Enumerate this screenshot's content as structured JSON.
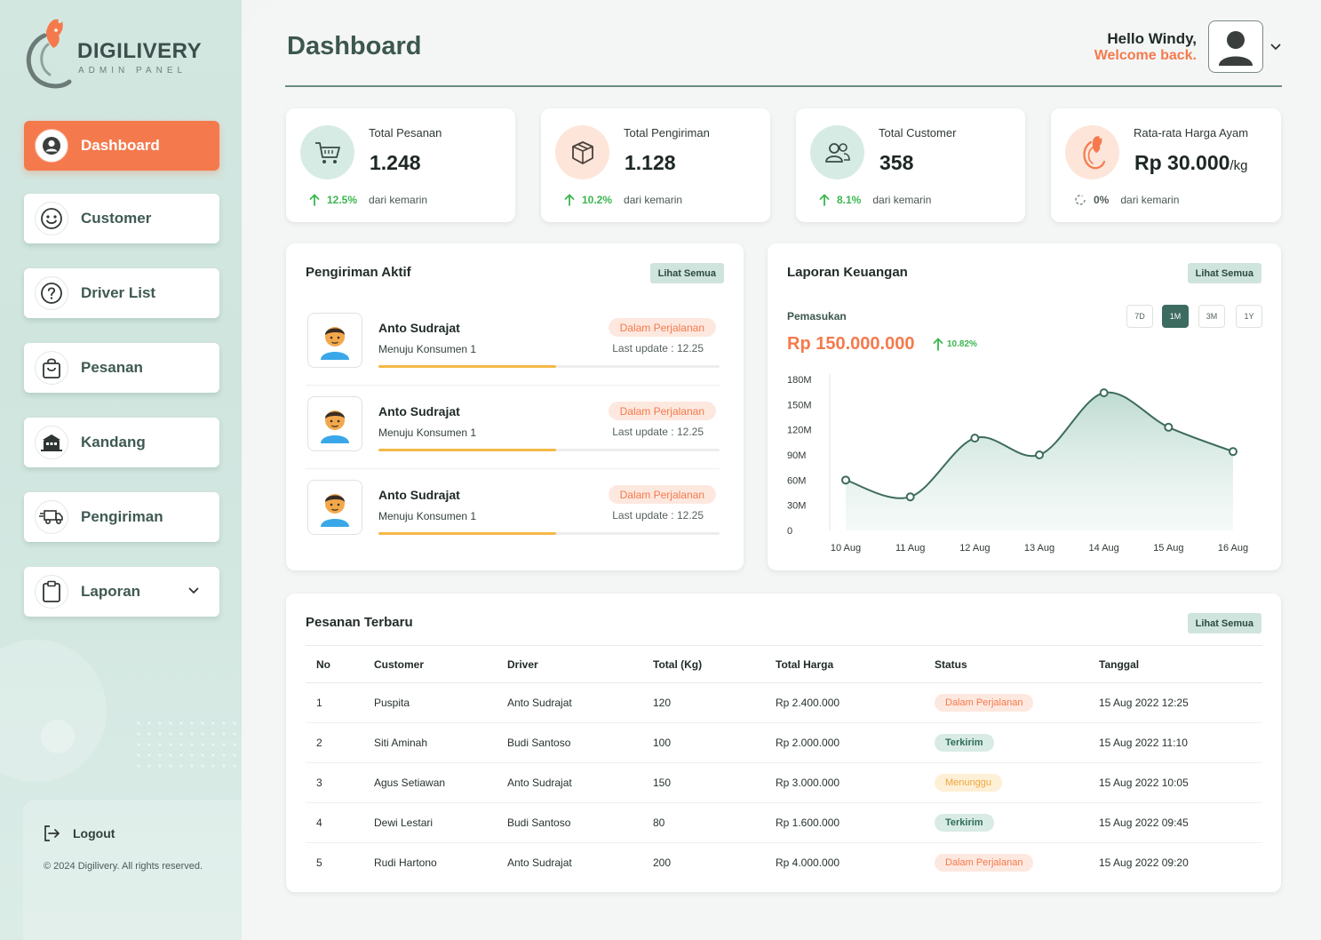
{
  "brand": {
    "name": "DIGILIVERY",
    "tagline": "ADMIN PANEL"
  },
  "sidebar": {
    "items": [
      {
        "label": "Dashboard",
        "icon": "user-circle-icon",
        "active": true
      },
      {
        "label": "Customer",
        "icon": "smiley-icon"
      },
      {
        "label": "Driver List",
        "icon": "question-circle-icon"
      },
      {
        "label": "Pesanan",
        "icon": "shopping-bag-icon"
      },
      {
        "label": "Kandang",
        "icon": "coop-icon"
      },
      {
        "label": "Pengiriman",
        "icon": "delivery-truck-icon"
      },
      {
        "label": "Laporan",
        "icon": "clipboard-icon"
      }
    ],
    "logout": "Logout",
    "copyright": "© 2024 Digilivery. All rights reserved."
  },
  "header": {
    "title": "Dashboard",
    "hello": "Hello Windy,",
    "welcome": "Welcome back."
  },
  "stats": [
    {
      "title": "Total Pesanan",
      "value": "1.248",
      "unit": "",
      "pct": "12.5%",
      "suffix": "dari kemarin",
      "icon": "cart-icon",
      "trend": "up"
    },
    {
      "title": "Total Pengiriman",
      "value": "1.128",
      "unit": "",
      "pct": "10.2%",
      "suffix": "dari kemarin",
      "icon": "box-icon",
      "trend": "up"
    },
    {
      "title": "Total Customer",
      "value": "358",
      "unit": "",
      "pct": "8.1%",
      "suffix": "dari kemarin",
      "icon": "users-icon",
      "trend": "up"
    },
    {
      "title": "Rata-rata Harga Ayam",
      "value": "Rp 30.000",
      "unit": "/kg",
      "pct": "0%",
      "suffix": "dari kemarin",
      "icon": "chicken-icon",
      "trend": "neutral"
    }
  ],
  "shipments": {
    "title": "Pengiriman Aktif",
    "view_all": "Lihat Semua",
    "rows": [
      {
        "name": "Anto Sudrajat",
        "dest": "Menuju Konsumen 1",
        "status": "Dalam Perjalanan",
        "update": "Last update : 12.25",
        "progress": 0.52
      },
      {
        "name": "Anto Sudrajat",
        "dest": "Menuju Konsumen 1",
        "status": "Dalam Perjalanan",
        "update": "Last update : 12.25",
        "progress": 0.52
      },
      {
        "name": "Anto Sudrajat",
        "dest": "Menuju Konsumen 1",
        "status": "Dalam Perjalanan",
        "update": "Last update : 12.25",
        "progress": 0.52
      }
    ]
  },
  "finance": {
    "title": "Laporan Keuangan",
    "view_all": "Lihat Semua",
    "label": "Pemasukan",
    "value": "Rp 150.000.000",
    "pct": "10.82%",
    "ranges": [
      "7D",
      "1M",
      "3M",
      "1Y"
    ],
    "active_range": "1M"
  },
  "chart_data": {
    "type": "area",
    "categories": [
      "10 Aug",
      "11 Aug",
      "12 Aug",
      "13 Aug",
      "14 Aug",
      "15 Aug",
      "16 Aug"
    ],
    "values": [
      60,
      40,
      110,
      90,
      164,
      123,
      94
    ],
    "yticks": [
      "0",
      "30M",
      "60M",
      "90M",
      "120M",
      "150M",
      "180M"
    ],
    "ylim": [
      0,
      180
    ],
    "line_color": "#3d6b5f",
    "grid": false
  },
  "orders": {
    "title": "Pesanan Terbaru",
    "view_all": "Lihat Semua",
    "columns": [
      "No",
      "Customer",
      "Driver",
      "Total (Kg)",
      "Total Harga",
      "Status",
      "Tanggal"
    ],
    "rows": [
      {
        "no": "1",
        "customer": "Puspita",
        "driver": "Anto Sudrajat",
        "kg": "120",
        "harga": "Rp 2.400.000",
        "status": "Dalam Perjalanan",
        "kind": "jalan",
        "date": "15 Aug 2022 12:25"
      },
      {
        "no": "2",
        "customer": "Siti Aminah",
        "driver": "Budi Santoso",
        "kg": "100",
        "harga": "Rp 2.000.000",
        "status": "Terkirim",
        "kind": "kirim",
        "date": "15 Aug 2022 11:10"
      },
      {
        "no": "3",
        "customer": "Agus Setiawan",
        "driver": "Anto Sudrajat",
        "kg": "150",
        "harga": "Rp 3.000.000",
        "status": "Menunggu",
        "kind": "tunggu",
        "date": "15 Aug 2022 10:05"
      },
      {
        "no": "4",
        "customer": "Dewi Lestari",
        "driver": "Budi Santoso",
        "kg": "80",
        "harga": "Rp 1.600.000",
        "status": "Terkirim",
        "kind": "kirim",
        "date": "15 Aug 2022 09:45"
      },
      {
        "no": "5",
        "customer": "Rudi Hartono",
        "driver": "Anto Sudrajat",
        "kg": "200",
        "harga": "Rp 4.000.000",
        "status": "Dalam Perjalanan",
        "kind": "jalan",
        "date": "15 Aug 2022 09:20"
      }
    ]
  },
  "colors": {
    "accent": "#f47a4d",
    "primary": "#3d6b5f",
    "success": "#3bb74f"
  }
}
